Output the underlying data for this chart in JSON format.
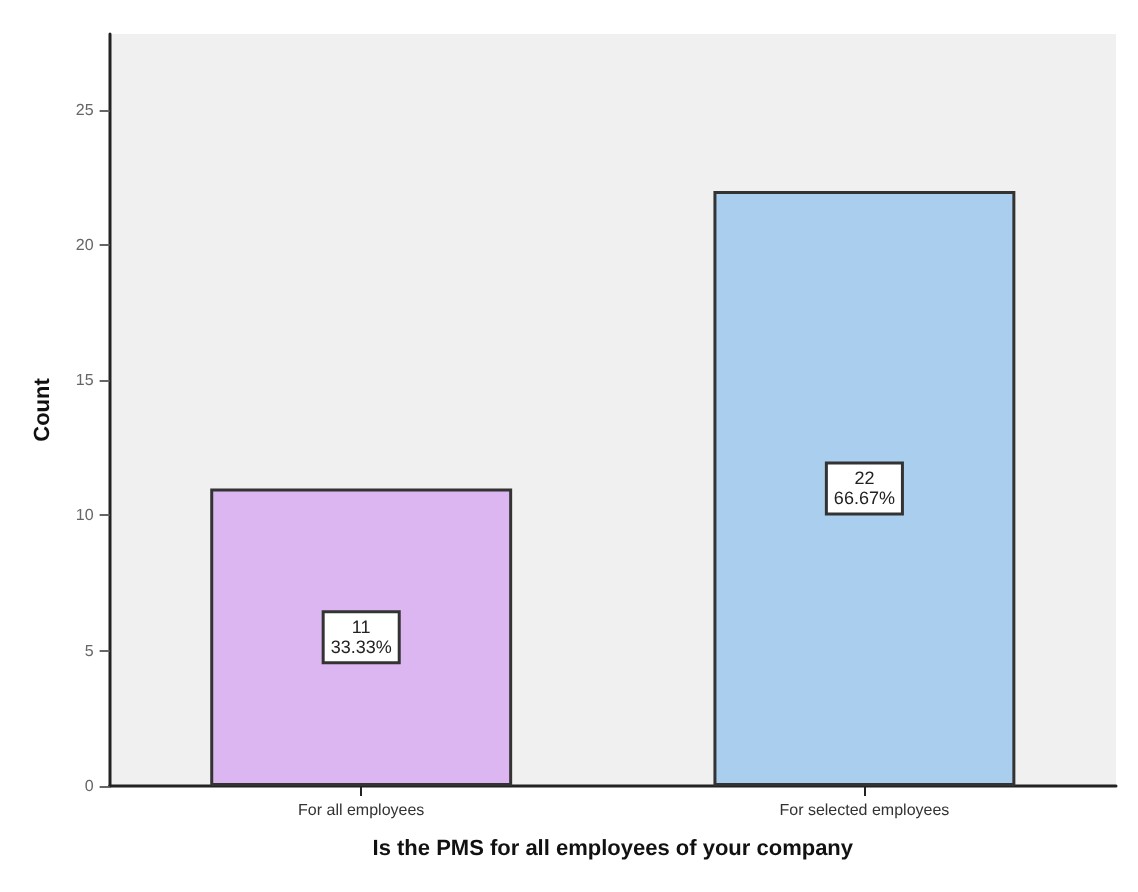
{
  "chart_data": {
    "type": "bar",
    "xlabel": "Is the PMS for all employees of your company",
    "ylabel": "Count",
    "categories": [
      "For all employees",
      "For selected employees"
    ],
    "values": [
      11,
      22
    ],
    "colors": [
      "#dcb6f0",
      "#aacfee"
    ],
    "value_labels": [
      "11\n33.33%",
      "22\n66.67%"
    ],
    "ylim": [
      0,
      27.8
    ],
    "yticks": [
      0,
      5,
      10,
      15,
      20,
      25
    ],
    "grid": false
  }
}
